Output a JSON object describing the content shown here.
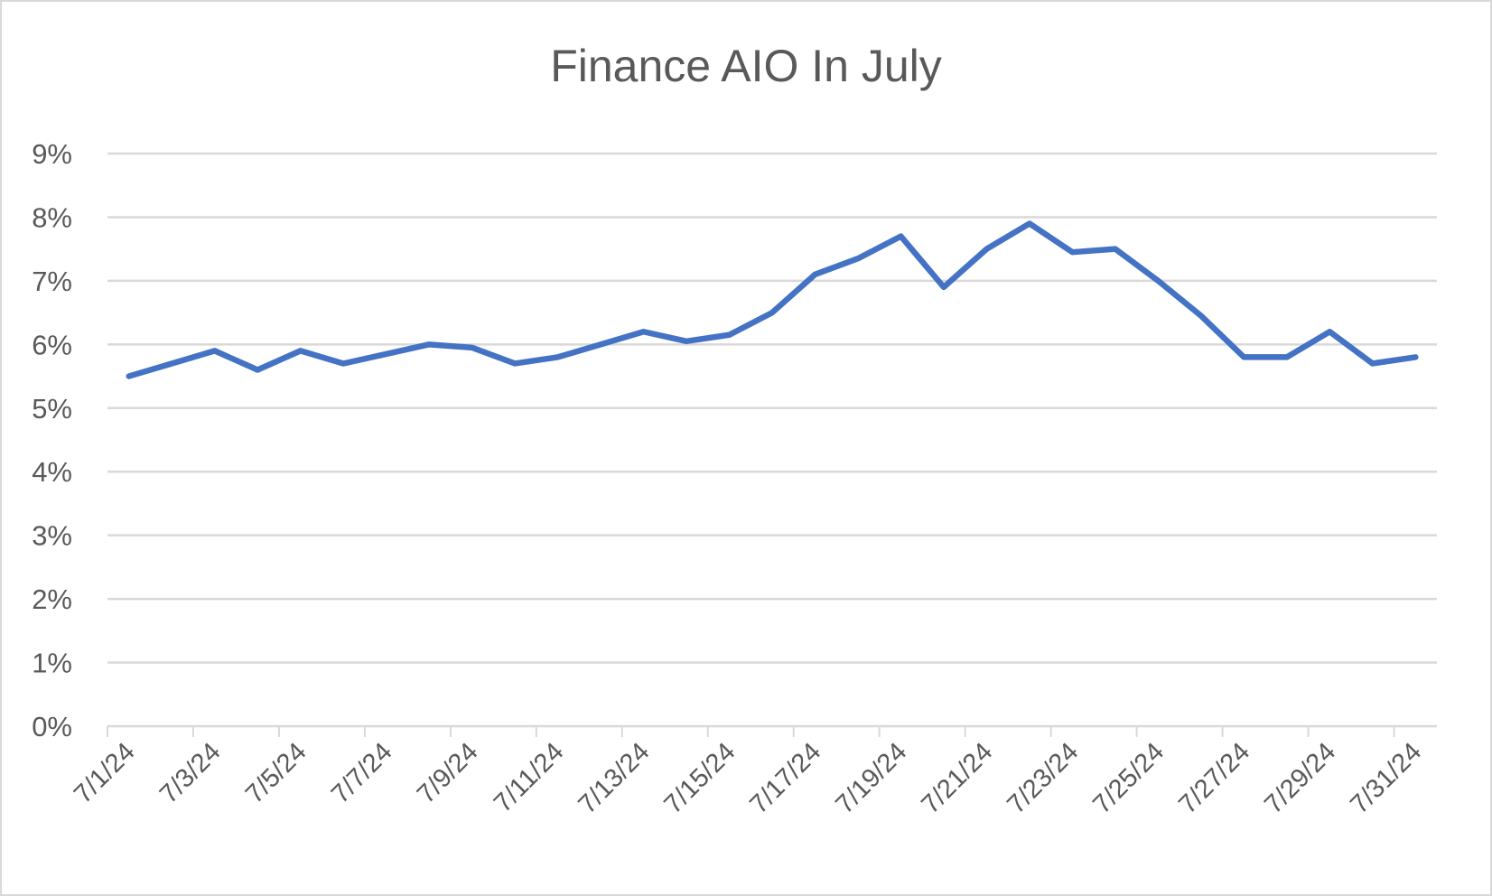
{
  "chart_data": {
    "type": "line",
    "title": "Finance AIO In July",
    "xlabel": "",
    "ylabel": "",
    "ylim": [
      0,
      0.09
    ],
    "yticks": [
      "0%",
      "1%",
      "2%",
      "3%",
      "4%",
      "5%",
      "6%",
      "7%",
      "8%",
      "9%"
    ],
    "grid": true,
    "legend": "none",
    "line_color": "#4472C4",
    "categories": [
      "7/1/24",
      "7/2/24",
      "7/3/24",
      "7/4/24",
      "7/5/24",
      "7/6/24",
      "7/7/24",
      "7/8/24",
      "7/9/24",
      "7/10/24",
      "7/11/24",
      "7/12/24",
      "7/13/24",
      "7/14/24",
      "7/15/24",
      "7/16/24",
      "7/17/24",
      "7/18/24",
      "7/19/24",
      "7/20/24",
      "7/21/24",
      "7/22/24",
      "7/23/24",
      "7/24/24",
      "7/25/24",
      "7/26/24",
      "7/27/24",
      "7/28/24",
      "7/29/24",
      "7/30/24",
      "7/31/24"
    ],
    "xtick_labels": [
      "7/1/24",
      "7/3/24",
      "7/5/24",
      "7/7/24",
      "7/9/24",
      "7/11/24",
      "7/13/24",
      "7/15/24",
      "7/17/24",
      "7/19/24",
      "7/21/24",
      "7/23/24",
      "7/25/24",
      "7/27/24",
      "7/29/24",
      "7/31/24"
    ],
    "values": [
      0.055,
      0.057,
      0.059,
      0.056,
      0.059,
      0.057,
      0.0585,
      0.06,
      0.0595,
      0.057,
      0.058,
      0.06,
      0.062,
      0.0605,
      0.0615,
      0.065,
      0.071,
      0.0735,
      0.077,
      0.069,
      0.075,
      0.079,
      0.0745,
      0.075,
      0.07,
      0.0645,
      0.058,
      0.058,
      0.062,
      0.057,
      0.058
    ]
  }
}
